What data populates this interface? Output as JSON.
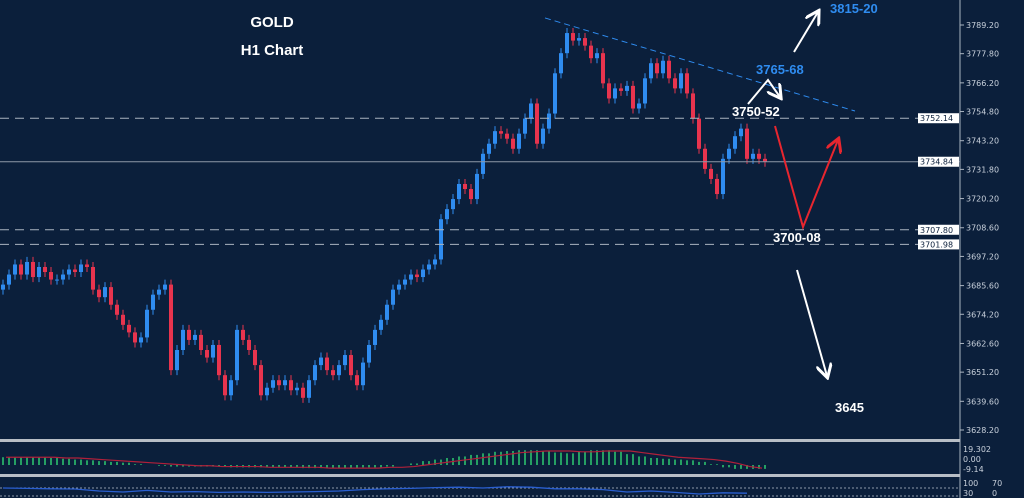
{
  "chart_data": {
    "type": "candlestick",
    "title": "GOLD",
    "subtitle": "H1 Chart",
    "colors": {
      "background": "#0b1f3b",
      "up": "#2f8cf0",
      "down": "#e8344e",
      "annotation_blue": "#2f8cf0",
      "annotation_white": "#ffffff",
      "arrow_red": "#e8262f",
      "macd_histogram": "#2ecc71",
      "macd_signal": "#b0203a",
      "rsi": "#2a5fd0"
    },
    "ylim": [
      3622,
      3796
    ],
    "y_ticks": [
      "3789.20",
      "3777.80",
      "3766.20",
      "3754.80",
      "3743.20",
      "3731.80",
      "3720.20",
      "3708.60",
      "3697.20",
      "3685.60",
      "3674.20",
      "3662.60",
      "3651.20",
      "3639.60",
      "3628.20"
    ],
    "price_tags": [
      {
        "label": "3752.14",
        "value": 3752.14,
        "style": "dashed"
      },
      {
        "label": "3734.84",
        "value": 3734.84,
        "style": "solid"
      },
      {
        "label": "3707.80",
        "value": 3707.8,
        "style": "dashed"
      },
      {
        "label": "3701.98",
        "value": 3701.98,
        "style": "dashed"
      }
    ],
    "close": [
      3686,
      3690,
      3694,
      3690,
      3695,
      3689,
      3693,
      3691,
      3688,
      3688,
      3690,
      3692,
      3691,
      3694,
      3693,
      3684,
      3681,
      3685,
      3678,
      3674,
      3670,
      3667,
      3663,
      3665,
      3676,
      3682,
      3684,
      3686,
      3652,
      3660,
      3668,
      3664,
      3666,
      3660,
      3657,
      3662,
      3650,
      3642,
      3648,
      3668,
      3664,
      3660,
      3654,
      3642,
      3645,
      3648,
      3646,
      3648,
      3644,
      3645,
      3641,
      3648,
      3654,
      3657,
      3652,
      3650,
      3654,
      3658,
      3650,
      3646,
      3655,
      3662,
      3668,
      3672,
      3678,
      3684,
      3686,
      3688,
      3690,
      3689,
      3692,
      3694,
      3696,
      3712,
      3716,
      3720,
      3726,
      3724,
      3720,
      3730,
      3738,
      3742,
      3747,
      3746,
      3744,
      3740,
      3746,
      3752,
      3758,
      3742,
      3748,
      3754,
      3770,
      3778,
      3786,
      3783,
      3784,
      3781,
      3776,
      3778,
      3766,
      3760,
      3764,
      3763,
      3765,
      3756,
      3758,
      3768,
      3774,
      3770,
      3775,
      3768,
      3764,
      3770,
      3762,
      3752,
      3740,
      3732,
      3728,
      3722,
      3736,
      3740,
      3745,
      3748,
      3736,
      3738,
      3736,
      3734.84
    ],
    "trendline": {
      "from_price": 3792,
      "to_price": 3755,
      "style": "dashed"
    },
    "annotations": [
      {
        "text": "3815-20",
        "color": "blue"
      },
      {
        "text": "3765-68",
        "color": "blue"
      },
      {
        "text": "3750-52",
        "color": "white"
      },
      {
        "text": "3700-08",
        "color": "white"
      },
      {
        "text": "3645",
        "color": "white"
      }
    ],
    "macd": {
      "ticks": [
        "19.302",
        "0.00",
        "-9.14"
      ],
      "range": [
        -9.14,
        19.302
      ],
      "histogram": [
        10,
        10,
        10,
        10,
        9,
        8,
        7,
        6,
        5,
        4,
        3,
        1,
        0,
        -1,
        -2,
        -2,
        -2,
        -2,
        -2,
        -3,
        -3,
        -3,
        -3,
        -3,
        -3,
        -4,
        -4,
        -4,
        -4,
        -4,
        -3,
        -3,
        -2,
        0,
        2,
        5,
        7,
        9,
        11,
        13,
        15,
        17,
        18,
        19,
        19,
        18,
        16,
        15,
        17,
        19,
        19,
        17,
        14,
        11,
        9,
        8,
        7,
        6,
        4,
        1,
        -3,
        -5,
        -5,
        -5
      ],
      "signal": [
        10,
        10,
        10,
        10,
        10,
        9,
        9,
        8,
        7,
        6,
        5,
        4,
        3,
        2,
        1,
        0,
        -1,
        -1,
        -2,
        -2,
        -2,
        -2,
        -3,
        -3,
        -3,
        -3,
        -3,
        -4,
        -4,
        -4,
        -4,
        -4,
        -3,
        -3,
        -2,
        0,
        2,
        4,
        6,
        8,
        10,
        12,
        14,
        16,
        17,
        18,
        18,
        18,
        17,
        17,
        18,
        18,
        18,
        16,
        14,
        12,
        10,
        9,
        8,
        7,
        5,
        2,
        -2,
        -4
      ]
    },
    "rsi": {
      "ticks": [
        "100",
        "70",
        "30",
        "0"
      ],
      "levels": [
        70,
        30
      ],
      "values": [
        70,
        68,
        66,
        65,
        55,
        50,
        58,
        50,
        52,
        48,
        50,
        48,
        50,
        52,
        55,
        62,
        66,
        68,
        72,
        74,
        70,
        76,
        74,
        66,
        66,
        62,
        50,
        55,
        48,
        40,
        46,
        44
      ]
    }
  }
}
